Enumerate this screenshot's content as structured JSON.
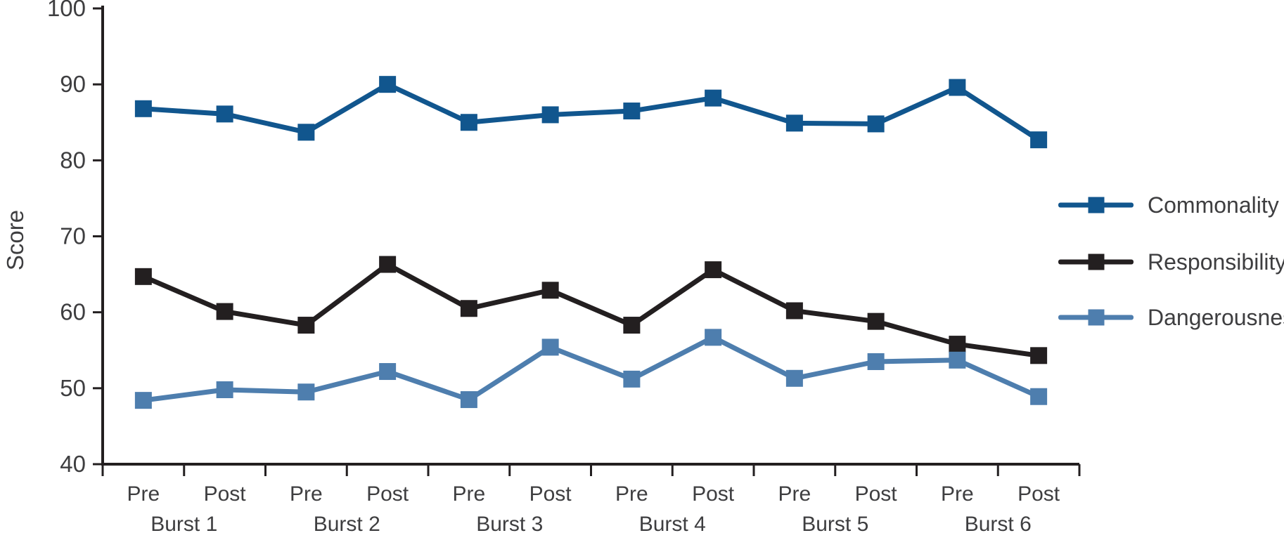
{
  "chart_data": {
    "type": "line",
    "title": "",
    "xlabel": "",
    "ylabel": "Score",
    "ylim": [
      40,
      100
    ],
    "yticks": [
      40,
      50,
      60,
      70,
      80,
      90,
      100
    ],
    "grid": false,
    "legend_position": "right",
    "marker": "square",
    "axis_color": "#231f20",
    "text_color": "#3e3e40",
    "categories": [
      "Pre",
      "Post",
      "Pre",
      "Post",
      "Pre",
      "Post",
      "Pre",
      "Post",
      "Pre",
      "Post",
      "Pre",
      "Post"
    ],
    "groups": [
      "Burst 1",
      "Burst 2",
      "Burst 3",
      "Burst 4",
      "Burst 5",
      "Burst 6"
    ],
    "series": [
      {
        "name": "Commonality",
        "color": "#11568e",
        "values": [
          86.8,
          86.1,
          83.7,
          90.0,
          85.0,
          86.0,
          86.5,
          88.2,
          84.9,
          84.8,
          89.6,
          82.7
        ]
      },
      {
        "name": "Responsibility",
        "color": "#231f20",
        "values": [
          64.7,
          60.1,
          58.3,
          66.3,
          60.5,
          62.9,
          58.3,
          65.6,
          60.2,
          58.8,
          55.8,
          54.3
        ]
      },
      {
        "name": "Dangerousness",
        "color": "#4e7eae",
        "values": [
          48.4,
          49.8,
          49.5,
          52.2,
          48.5,
          55.4,
          51.2,
          56.7,
          51.3,
          53.5,
          53.7,
          48.9
        ]
      }
    ]
  }
}
